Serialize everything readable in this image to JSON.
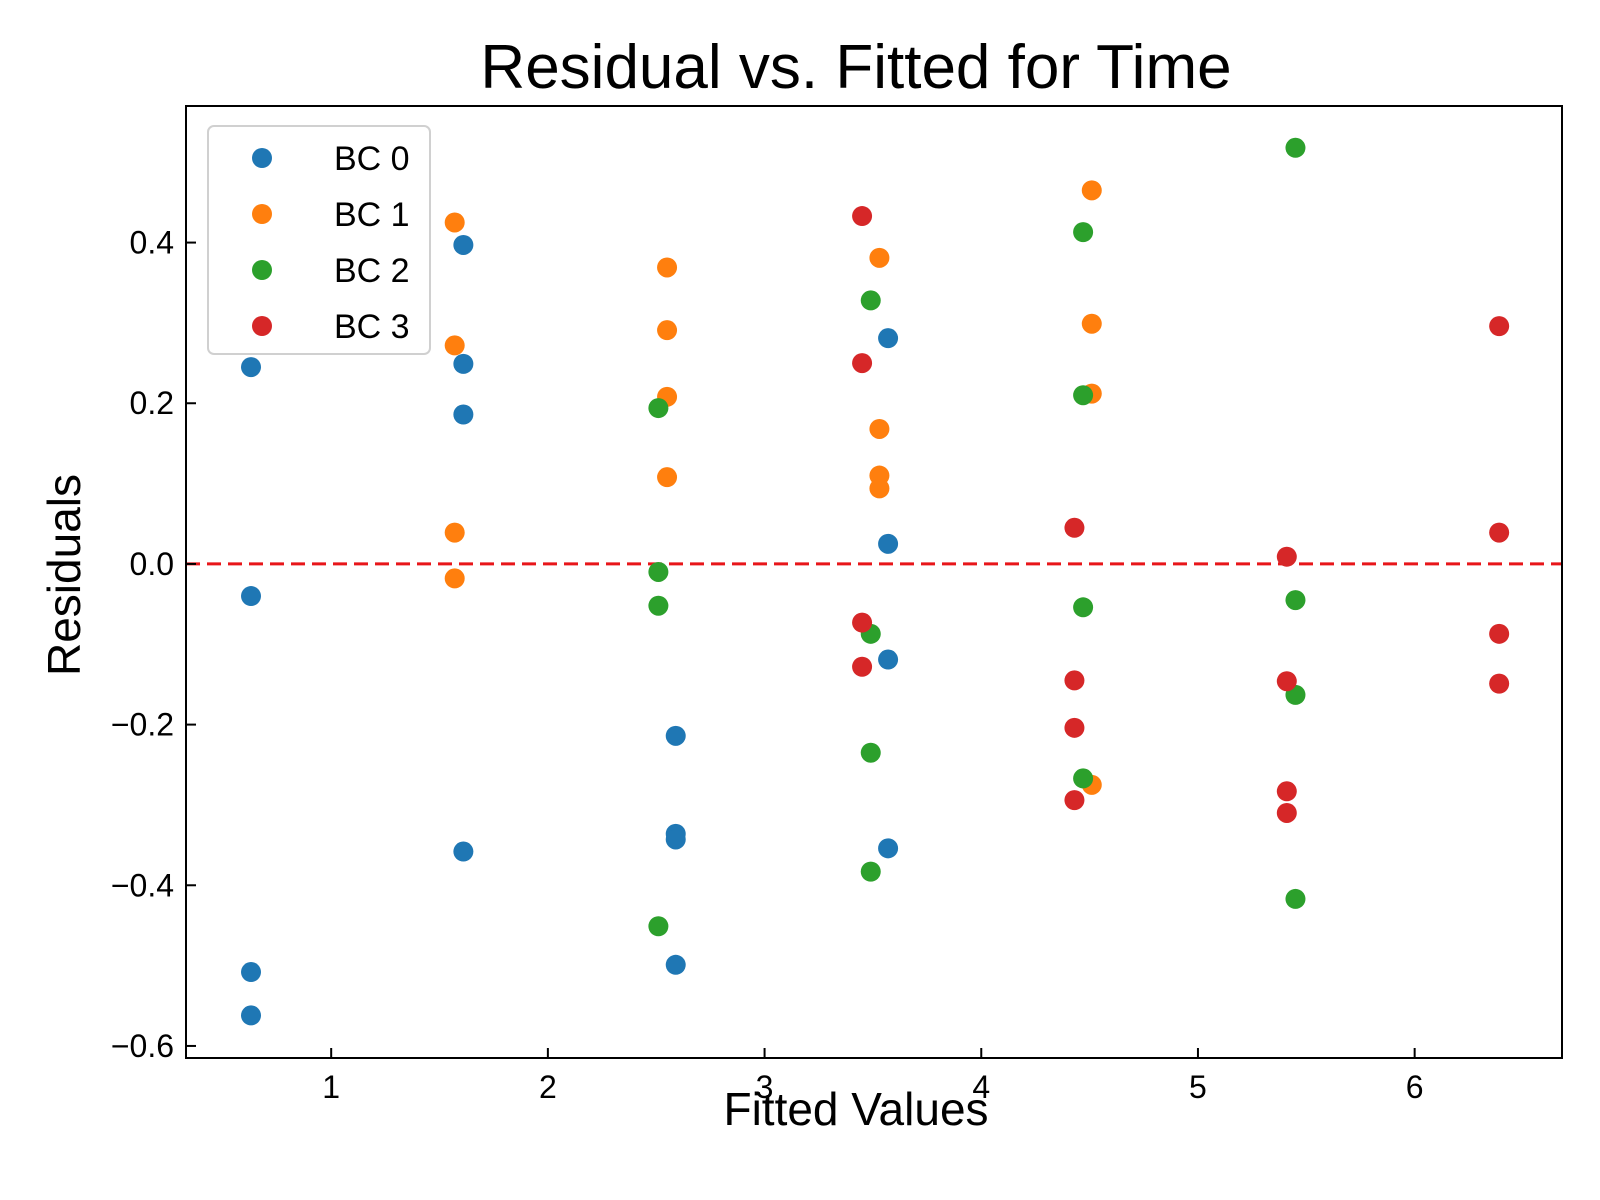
{
  "chart_data": {
    "type": "scatter",
    "title": "Residual vs. Fitted for Time",
    "xlabel": "Fitted Values",
    "ylabel": "Residuals",
    "xlim": [
      0.33,
      6.68
    ],
    "ylim": [
      -0.615,
      0.57
    ],
    "xticks": [
      1,
      2,
      3,
      4,
      5,
      6
    ],
    "xtick_labels": [
      "1",
      "2",
      "3",
      "4",
      "5",
      "6"
    ],
    "yticks": [
      -0.6,
      -0.4,
      -0.2,
      0.0,
      0.2,
      0.4
    ],
    "ytick_labels": [
      "−0.6",
      "−0.4",
      "−0.2",
      "0.0",
      "0.2",
      "0.4"
    ],
    "grid": false,
    "legend_position": "top-left",
    "reference_line": {
      "y": 0,
      "color": "#e8161a",
      "style": "dashed"
    },
    "series": [
      {
        "name": "BC 0",
        "color": "#1f77b4",
        "points": [
          [
            0.63,
            0.245
          ],
          [
            0.63,
            -0.04
          ],
          [
            0.63,
            -0.508
          ],
          [
            0.63,
            -0.562
          ],
          [
            1.61,
            0.397
          ],
          [
            1.61,
            0.249
          ],
          [
            1.61,
            0.186
          ],
          [
            1.61,
            -0.358
          ],
          [
            2.59,
            -0.214
          ],
          [
            2.59,
            -0.336
          ],
          [
            2.59,
            -0.343
          ],
          [
            2.59,
            -0.499
          ],
          [
            3.57,
            0.281
          ],
          [
            3.57,
            0.025
          ],
          [
            3.57,
            -0.119
          ],
          [
            3.57,
            -0.354
          ]
        ]
      },
      {
        "name": "BC 1",
        "color": "#ff7f0e",
        "points": [
          [
            1.57,
            0.425
          ],
          [
            1.57,
            0.272
          ],
          [
            1.57,
            0.039
          ],
          [
            1.57,
            -0.018
          ],
          [
            2.55,
            0.369
          ],
          [
            2.55,
            0.291
          ],
          [
            2.55,
            0.208
          ],
          [
            2.55,
            0.108
          ],
          [
            3.53,
            0.381
          ],
          [
            3.53,
            0.168
          ],
          [
            3.53,
            0.11
          ],
          [
            3.53,
            0.094
          ],
          [
            4.51,
            0.465
          ],
          [
            4.51,
            0.299
          ],
          [
            4.51,
            0.212
          ],
          [
            4.51,
            -0.275
          ]
        ]
      },
      {
        "name": "BC 2",
        "color": "#2ca02c",
        "points": [
          [
            2.51,
            0.194
          ],
          [
            2.51,
            -0.01
          ],
          [
            2.51,
            -0.052
          ],
          [
            2.51,
            -0.451
          ],
          [
            3.49,
            0.328
          ],
          [
            3.49,
            -0.087
          ],
          [
            3.49,
            -0.235
          ],
          [
            3.49,
            -0.383
          ],
          [
            4.47,
            0.413
          ],
          [
            4.47,
            0.21
          ],
          [
            4.47,
            -0.054
          ],
          [
            4.47,
            -0.267
          ],
          [
            5.45,
            0.518
          ],
          [
            5.45,
            -0.045
          ],
          [
            5.45,
            -0.163
          ],
          [
            5.45,
            -0.417
          ]
        ]
      },
      {
        "name": "BC 3",
        "color": "#d62728",
        "points": [
          [
            3.45,
            0.433
          ],
          [
            3.45,
            0.25
          ],
          [
            3.45,
            -0.073
          ],
          [
            3.45,
            -0.128
          ],
          [
            4.43,
            0.045
          ],
          [
            4.43,
            -0.145
          ],
          [
            4.43,
            -0.204
          ],
          [
            4.43,
            -0.294
          ],
          [
            5.41,
            0.009
          ],
          [
            5.41,
            -0.146
          ],
          [
            5.41,
            -0.283
          ],
          [
            5.41,
            -0.31
          ],
          [
            6.39,
            0.296
          ],
          [
            6.39,
            0.039
          ],
          [
            6.39,
            -0.087
          ],
          [
            6.39,
            -0.149
          ]
        ]
      }
    ]
  }
}
